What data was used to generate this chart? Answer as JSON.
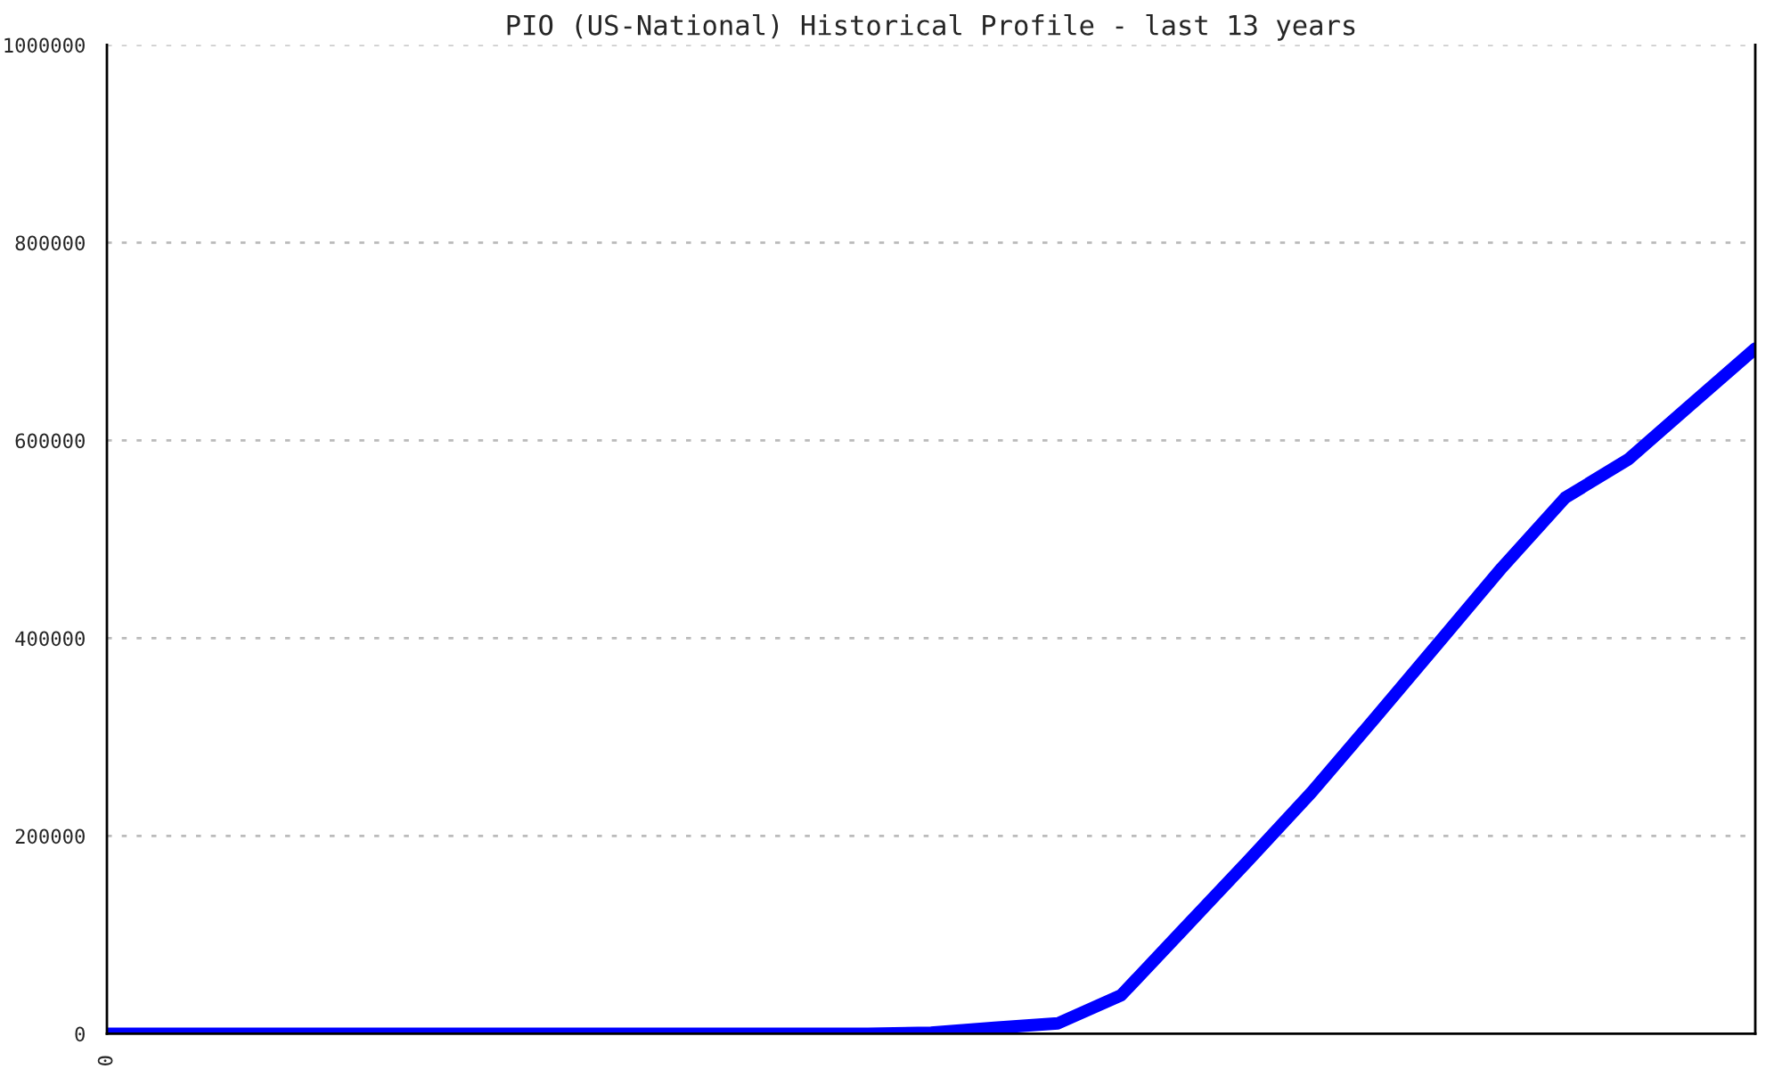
{
  "chart_data": {
    "type": "line",
    "title": "PIO (US-National) Historical Profile - last 13 years",
    "categories": [
      "0",
      null,
      null,
      null,
      null,
      null,
      null,
      null,
      null,
      null,
      null,
      null,
      null,
      null,
      null,
      null,
      null,
      null,
      null,
      null,
      null,
      null,
      null,
      null,
      null,
      null,
      null
    ],
    "series": [
      {
        "color": "#0000ff",
        "values": [
          0,
          0,
          0,
          0,
          0,
          0,
          0,
          0,
          0,
          0,
          0,
          0,
          0,
          1000,
          6000,
          10500,
          39000,
          107000,
          175000,
          244000,
          319000,
          395000,
          471000,
          542000,
          581000,
          637000,
          693000
        ]
      }
    ],
    "ylim": [
      0,
      1000000
    ],
    "yticks": [
      0,
      200000,
      400000,
      600000,
      800000,
      1000000
    ],
    "grid": "y",
    "marker": "none",
    "line_style": "solid"
  }
}
